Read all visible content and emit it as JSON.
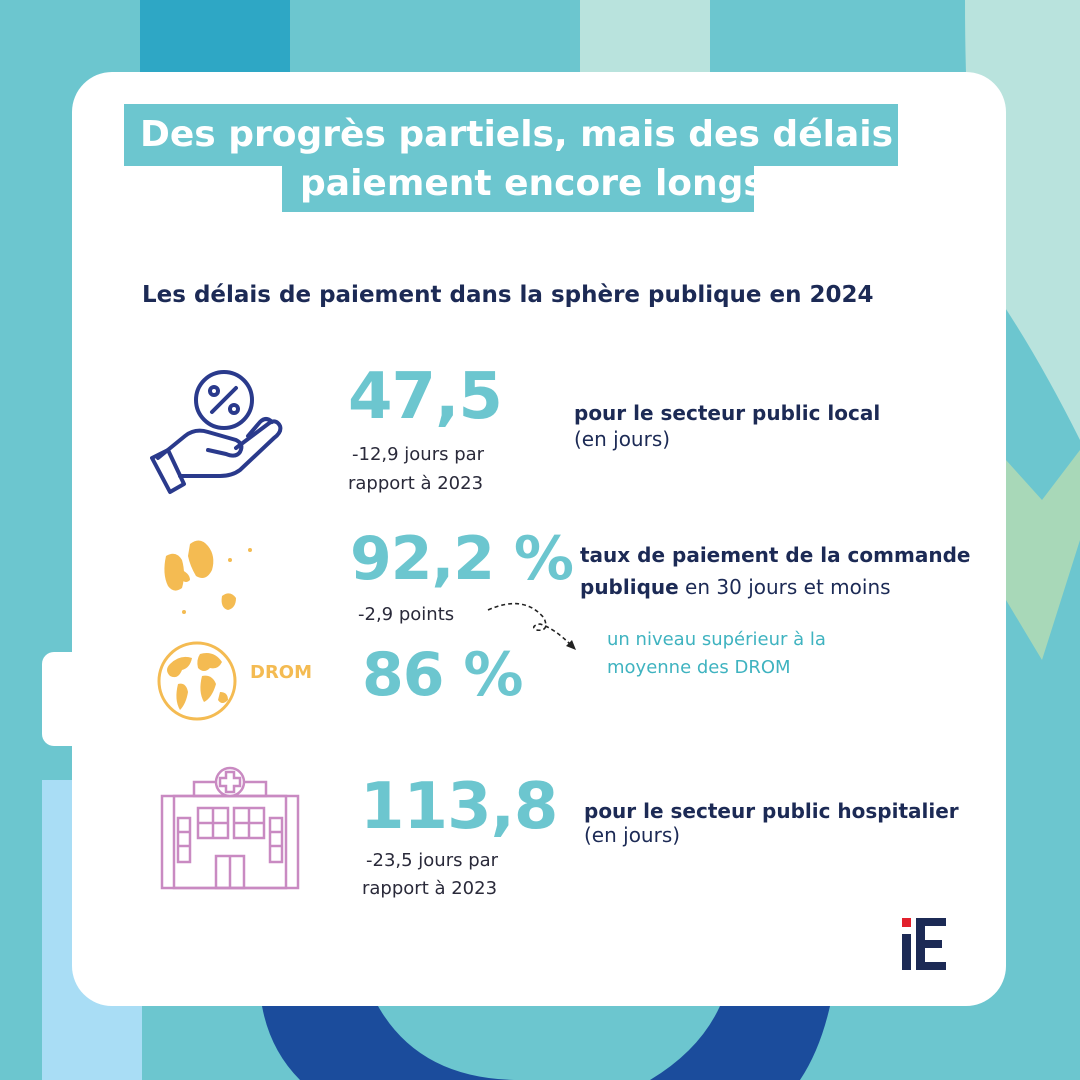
{
  "title": {
    "line1": "Des progrès partiels, mais des délais de",
    "line2": "paiement encore longs"
  },
  "subtitle": "Les délais de paiement dans la sphère publique en 2024",
  "stats": {
    "local": {
      "value": "47,5",
      "change_line1": "-12,9 jours par",
      "change_line2": "rapport à 2023",
      "label_bold": "pour le secteur public local",
      "label_unit": "(en jours)"
    },
    "commande": {
      "value": "92,2 %",
      "change": "-2,9 points",
      "label_bold_1": "taux de paiement de la commande",
      "label_bold_2": "publique",
      "label_rest": " en 30 jours et moins"
    },
    "drom": {
      "tag": "DROM",
      "value": "86 %",
      "note_line1": "un niveau supérieur à la",
      "note_line2": "moyenne des DROM"
    },
    "hospitalier": {
      "value": "113,8",
      "change_line1": "-23,5 jours par",
      "change_line2": "rapport à 2023",
      "label_bold": "pour le secteur public hospitalier",
      "label_unit": "(en jours)"
    }
  },
  "logo": "iE",
  "colors": {
    "background": "#6cc6cf",
    "accent_teal": "#6cc6cf",
    "navy": "#1c2a55",
    "orange": "#f4bb52",
    "pink": "#c98ac2",
    "blue_icon": "#2a3a8c",
    "logo_red": "#e2202c"
  },
  "icons": {
    "local": "hand-percent-icon",
    "commande": "islands-map-icon",
    "drom": "globe-icon",
    "hospitalier": "hospital-icon",
    "arrow": "dashed-curved-arrow-icon"
  }
}
